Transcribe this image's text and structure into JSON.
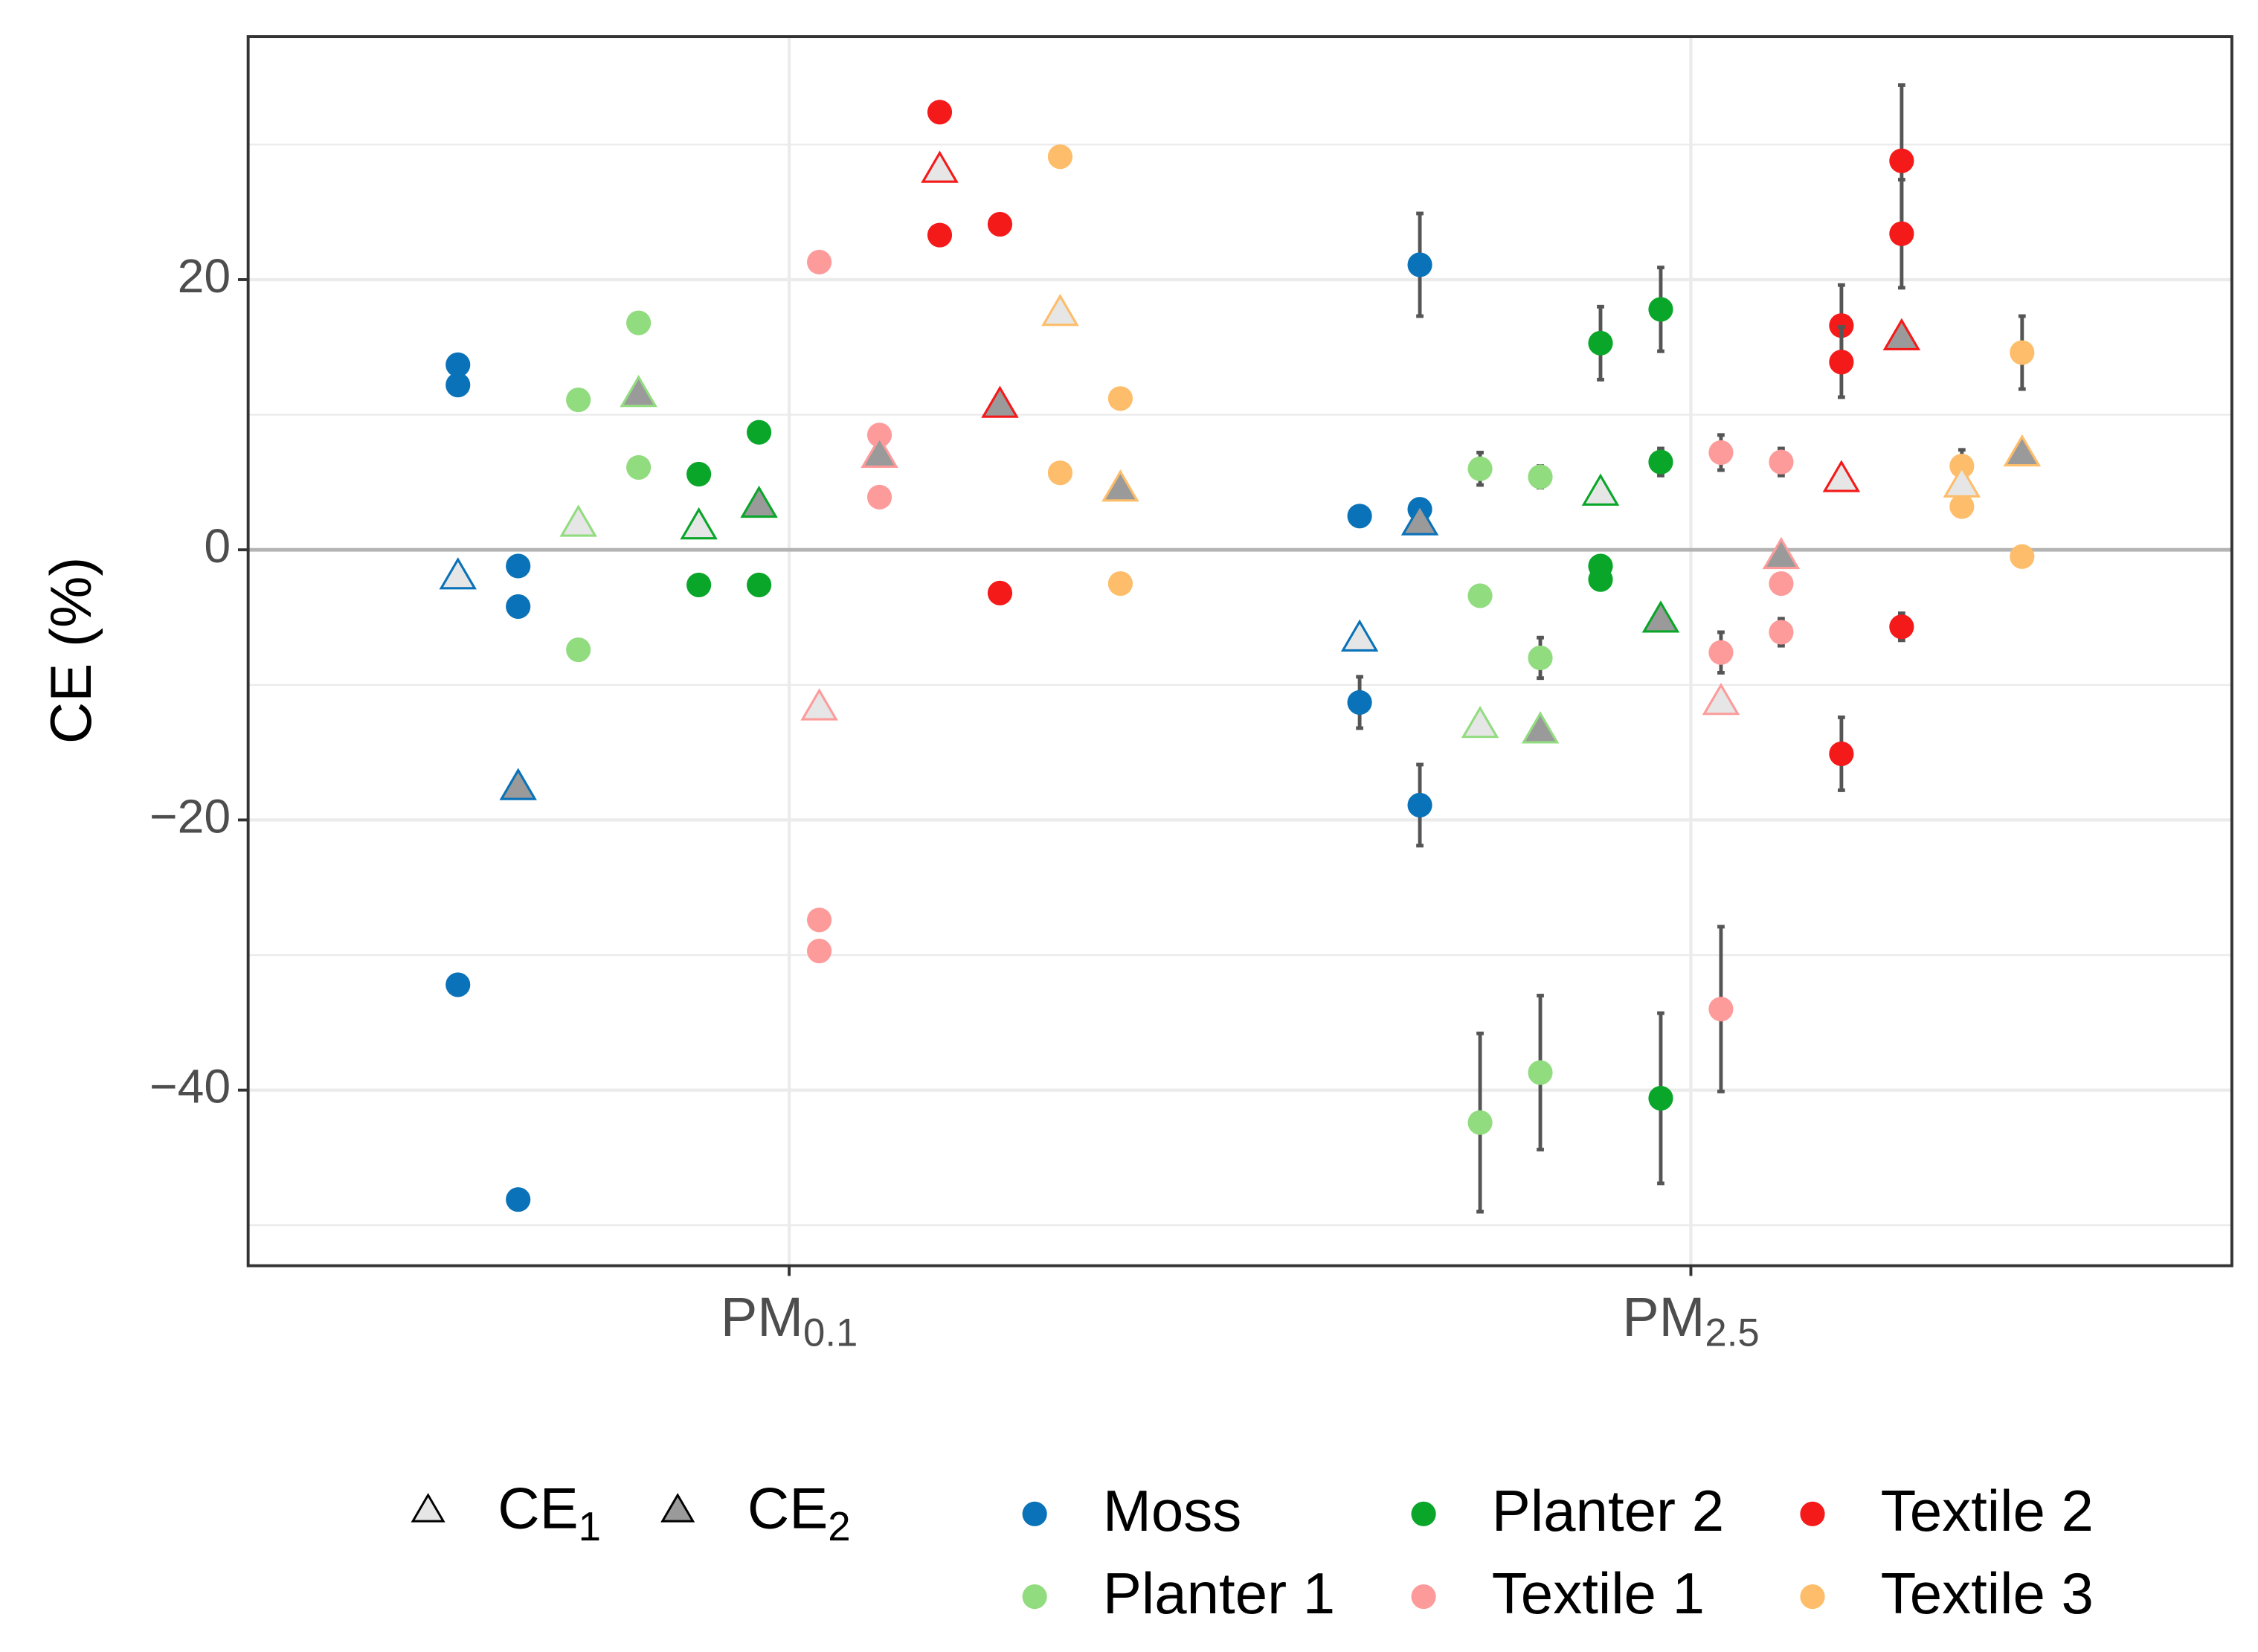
{
  "chart_data": {
    "type": "scatter",
    "ylabel": "CE (%)",
    "categories": [
      [
        "PM",
        "0.1"
      ],
      [
        "PM",
        "2.5"
      ]
    ],
    "measures": [
      [
        "CE",
        "1"
      ],
      [
        "CE",
        "2"
      ]
    ],
    "measure_fills": [
      "#e6e6e6",
      "#9a9a9a"
    ],
    "ylim": [
      -53,
      38
    ],
    "yticks": [
      {
        "value": -40,
        "label": "−40"
      },
      {
        "value": -20,
        "label": "−20"
      },
      0,
      20
    ],
    "yminor": [
      -50,
      -30,
      -10,
      10,
      30
    ],
    "reference_line": 0,
    "grid": true,
    "series": [
      {
        "name": "Moss",
        "color": "#0a72b8",
        "values": [
          [
            [
              13.7,
              12.2,
              -32.2
            ],
            [
              -1.2,
              -4.2,
              -48.1
            ]
          ],
          [
            [
              2.5,
              -11.3
            ],
            [
              21.1,
              3.0,
              -18.9
            ]
          ]
        ],
        "errors": [
          [
            [
              null,
              null,
              null
            ],
            [
              null,
              null,
              null
            ]
          ],
          [
            [
              null,
              1.9
            ],
            [
              3.8,
              0.7,
              3.0
            ]
          ]
        ],
        "means": [
          [
            -1.9,
            -17.5
          ],
          [
            -6.5,
            2.1
          ]
        ]
      },
      {
        "name": "Planter 1",
        "color": "#92dc80",
        "values": [
          [
            [
              11.1,
              -7.4
            ],
            [
              16.8,
              6.1
            ]
          ],
          [
            [
              6.0,
              -3.4,
              -42.4
            ],
            [
              5.4,
              -8.0,
              -38.7
            ]
          ]
        ],
        "errors": [
          [
            [
              null,
              null
            ],
            [
              null,
              null
            ]
          ],
          [
            [
              1.2,
              null,
              6.6
            ],
            [
              0.8,
              1.5,
              5.7
            ]
          ]
        ],
        "means": [
          [
            2.0,
            11.6
          ],
          [
            -12.9,
            -13.3
          ]
        ]
      },
      {
        "name": "Planter 2",
        "color": "#0aa62a",
        "values": [
          [
            [
              5.6,
              -2.6
            ],
            [
              8.7,
              -2.6
            ]
          ],
          [
            [
              15.3,
              -1.2,
              -2.2
            ],
            [
              17.8,
              6.5,
              -40.6
            ]
          ]
        ],
        "errors": [
          [
            [
              null,
              null
            ],
            [
              null,
              null
            ]
          ],
          [
            [
              2.7,
              null,
              null
            ],
            [
              3.1,
              1.0,
              6.3
            ]
          ]
        ],
        "means": [
          [
            1.8,
            3.4
          ],
          [
            4.3,
            -5.1
          ]
        ]
      },
      {
        "name": "Textile 1",
        "color": "#fd9b9b",
        "values": [
          [
            [
              21.3,
              -27.4,
              -29.7
            ],
            [
              8.5,
              3.9
            ]
          ],
          [
            [
              7.2,
              -7.6,
              -34.0
            ],
            [
              6.5,
              -2.5,
              -6.1
            ]
          ]
        ],
        "errors": [
          [
            [
              null,
              null,
              null
            ],
            [
              null,
              null
            ]
          ],
          [
            [
              1.3,
              1.5,
              6.1
            ],
            [
              1.0,
              null,
              1.0
            ]
          ]
        ],
        "means": [
          [
            -11.6,
            7.1
          ],
          [
            -11.2,
            -0.4
          ]
        ]
      },
      {
        "name": "Textile 2",
        "color": "#f41a1a",
        "values": [
          [
            [
              32.4,
              23.3
            ],
            [
              24.1,
              -3.2
            ]
          ],
          [
            [
              16.6,
              13.9,
              -15.1
            ],
            [
              28.8,
              23.4,
              -5.7
            ]
          ]
        ],
        "errors": [
          [
            [
              null,
              null
            ],
            [
              null,
              null
            ]
          ],
          [
            [
              3.0,
              2.6,
              2.7
            ],
            [
              5.6,
              4.0,
              1.0
            ]
          ]
        ],
        "means": [
          [
            28.2,
            10.8
          ],
          [
            5.3,
            15.8
          ]
        ]
      },
      {
        "name": "Textile 3",
        "color": "#fdbd6a",
        "values": [
          [
            [
              29.1,
              5.7
            ],
            [
              11.2,
              -2.5
            ]
          ],
          [
            [
              6.2,
              3.2
            ],
            [
              14.6,
              -0.5
            ]
          ]
        ],
        "errors": [
          [
            [
              null,
              null
            ],
            [
              null,
              null
            ]
          ],
          [
            [
              1.2,
              null
            ],
            [
              2.7,
              null
            ]
          ]
        ],
        "means": [
          [
            17.6,
            4.6
          ],
          [
            4.9,
            7.2
          ]
        ]
      }
    ]
  }
}
